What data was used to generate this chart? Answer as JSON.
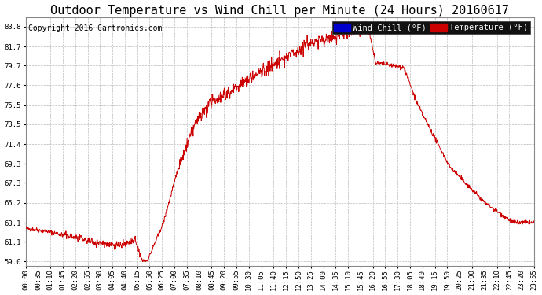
{
  "title": "Outdoor Temperature vs Wind Chill per Minute (24 Hours) 20160617",
  "copyright": "Copyright 2016 Cartronics.com",
  "legend_wind_chill": "Wind Chill (°F)",
  "legend_temperature": "Temperature (°F)",
  "line_color": "#cc0000",
  "background_color": "#ffffff",
  "plot_bg_color": "#ffffff",
  "grid_color": "#bbbbbb",
  "yticks": [
    59.0,
    61.1,
    63.1,
    65.2,
    67.3,
    69.3,
    71.4,
    73.5,
    75.5,
    77.6,
    79.7,
    81.7,
    83.8
  ],
  "ylim": [
    58.5,
    84.8
  ],
  "xtick_labels": [
    "00:00",
    "00:35",
    "01:10",
    "01:45",
    "02:20",
    "02:55",
    "03:30",
    "04:05",
    "04:40",
    "05:15",
    "05:50",
    "06:25",
    "07:00",
    "07:35",
    "08:10",
    "08:45",
    "09:20",
    "09:55",
    "10:30",
    "11:05",
    "11:40",
    "12:15",
    "12:50",
    "13:25",
    "14:00",
    "14:35",
    "15:10",
    "15:45",
    "16:20",
    "16:55",
    "17:30",
    "18:05",
    "18:40",
    "19:15",
    "19:50",
    "20:25",
    "21:00",
    "21:35",
    "22:10",
    "22:45",
    "23:20",
    "23:55"
  ],
  "title_fontsize": 11,
  "copyright_fontsize": 7,
  "tick_fontsize": 6.5,
  "legend_fontsize": 7.5
}
